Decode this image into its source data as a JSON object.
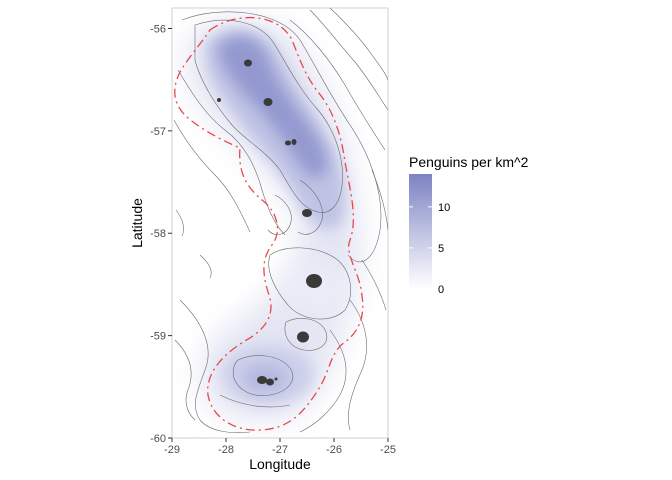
{
  "chart_data": {
    "type": "heatmap",
    "title": "",
    "xlabel": "Longitude",
    "ylabel": "Latitude",
    "xlim": [
      -29,
      -25
    ],
    "ylim": [
      -60,
      -55.8
    ],
    "x_ticks": [
      -29,
      -28,
      -27,
      -26,
      -25
    ],
    "y_ticks": [
      -56,
      -57,
      -58,
      -59,
      -60
    ],
    "grid": false,
    "background": "#ffffff",
    "colorbar": {
      "title": "Penguins per km^2",
      "min": 0,
      "max": 14,
      "ticks": [
        0,
        5,
        10
      ],
      "low_color": "#ffffff",
      "high_color": "#7c83c3",
      "placement": "right"
    },
    "density_hotspots": [
      {
        "lon": -27.4,
        "lat": -56.3,
        "density": 13
      },
      {
        "lon": -27.0,
        "lat": -56.7,
        "density": 12
      },
      {
        "lon": -26.8,
        "lat": -57.1,
        "density": 11
      },
      {
        "lon": -26.4,
        "lat": -57.6,
        "density": 10
      },
      {
        "lon": -26.4,
        "lat": -57.9,
        "density": 7
      },
      {
        "lon": -26.3,
        "lat": -58.5,
        "density": 2
      },
      {
        "lon": -26.6,
        "lat": -59.0,
        "density": 3
      },
      {
        "lon": -27.3,
        "lat": -59.45,
        "density": 4
      }
    ],
    "islands": [
      {
        "lon": -27.45,
        "lat": -56.3
      },
      {
        "lon": -27.1,
        "lat": -56.7
      },
      {
        "lon": -26.75,
        "lat": -57.1
      },
      {
        "lon": -26.5,
        "lat": -57.8
      },
      {
        "lon": -26.4,
        "lat": -58.45
      },
      {
        "lon": -26.6,
        "lat": -59.05
      },
      {
        "lon": -27.3,
        "lat": -59.45
      }
    ],
    "boundary_color": "#e8474a",
    "bathymetry_color": "#6b6b6b",
    "island_color": "#3a3a3a"
  }
}
